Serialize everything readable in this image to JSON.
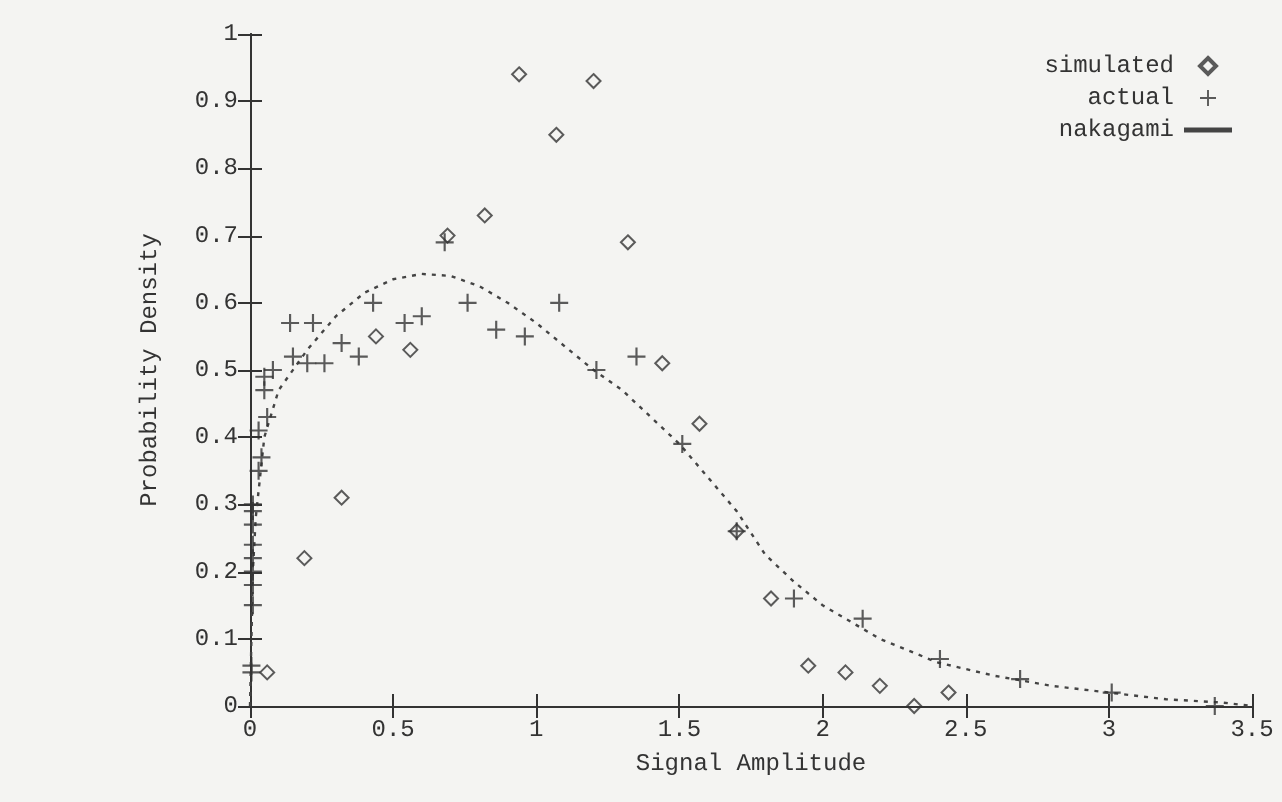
{
  "chart_data": {
    "type": "line",
    "xlabel": "Signal Amplitude",
    "ylabel": "Probability Density",
    "xlim": [
      0,
      3.5
    ],
    "xticks": [
      0,
      0.5,
      1,
      1.5,
      2,
      2.5,
      3,
      3.5
    ],
    "ylim": [
      0,
      1
    ],
    "yticks": [
      0,
      0.1,
      0.2,
      0.3,
      0.4,
      0.5,
      0.6,
      0.7,
      0.8,
      0.9,
      1
    ],
    "grid": false,
    "legend": "top right",
    "series": [
      {
        "name": "simulated",
        "type": "scatter",
        "marker": "diamond",
        "color": "#333333",
        "x": [
          0.06,
          0.19,
          0.32,
          0.44,
          0.56,
          0.69,
          0.82,
          0.94,
          1.07,
          1.2,
          1.32,
          1.44,
          1.57,
          1.7,
          1.82,
          1.95,
          2.08,
          2.2,
          2.32,
          2.44
        ],
        "values": [
          0.05,
          0.22,
          0.31,
          0.55,
          0.53,
          0.7,
          0.73,
          0.94,
          0.85,
          0.93,
          0.69,
          0.51,
          0.42,
          0.26,
          0.16,
          0.06,
          0.05,
          0.03,
          0,
          0.02
        ]
      },
      {
        "name": "actual",
        "type": "scatter",
        "marker": "cross",
        "color": "#333333",
        "x": [
          0.005,
          0.005,
          0.01,
          0.01,
          0.01,
          0.01,
          0.01,
          0.01,
          0.01,
          0.01,
          0.03,
          0.04,
          0.03,
          0.06,
          0.05,
          0.05,
          0.08,
          0.14,
          0.22,
          0.15,
          0.2,
          0.26,
          0.32,
          0.38,
          0.43,
          0.54,
          0.6,
          0.68,
          0.76,
          0.86,
          0.96,
          1.08,
          1.21,
          1.35,
          1.51,
          1.7,
          1.9,
          2.14,
          2.41,
          2.69,
          3.01,
          3.37
        ],
        "values": [
          0.05,
          0.06,
          0.15,
          0.18,
          0.2,
          0.22,
          0.24,
          0.27,
          0.29,
          0.3,
          0.35,
          0.37,
          0.41,
          0.43,
          0.47,
          0.49,
          0.5,
          0.57,
          0.57,
          0.52,
          0.51,
          0.51,
          0.54,
          0.52,
          0.6,
          0.57,
          0.58,
          0.69,
          0.6,
          0.56,
          0.55,
          0.6,
          0.5,
          0.52,
          0.39,
          0.26,
          0.16,
          0.13,
          0.07,
          0.04,
          0.02,
          0
        ]
      },
      {
        "name": "nakagami",
        "marker": "none",
        "line_style": "dotted",
        "color": "#444444",
        "x": [
          0,
          0.01,
          0.02,
          0.05,
          0.1,
          0.2,
          0.3,
          0.4,
          0.5,
          0.6,
          0.7,
          0.8,
          0.9,
          1,
          1.1,
          1.2,
          1.3,
          1.4,
          1.5,
          1.6,
          1.7,
          1.8,
          1.9,
          2,
          2.2,
          2.4,
          2.6,
          2.8,
          3,
          3.2,
          3.4,
          3.5
        ],
        "values": [
          0,
          0.2,
          0.28,
          0.4,
          0.47,
          0.53,
          0.58,
          0.615,
          0.635,
          0.643,
          0.64,
          0.625,
          0.6,
          0.57,
          0.535,
          0.5,
          0.47,
          0.43,
          0.39,
          0.34,
          0.29,
          0.225,
          0.185,
          0.15,
          0.1,
          0.065,
          0.045,
          0.03,
          0.02,
          0.01,
          0.005,
          0
        ]
      }
    ]
  }
}
